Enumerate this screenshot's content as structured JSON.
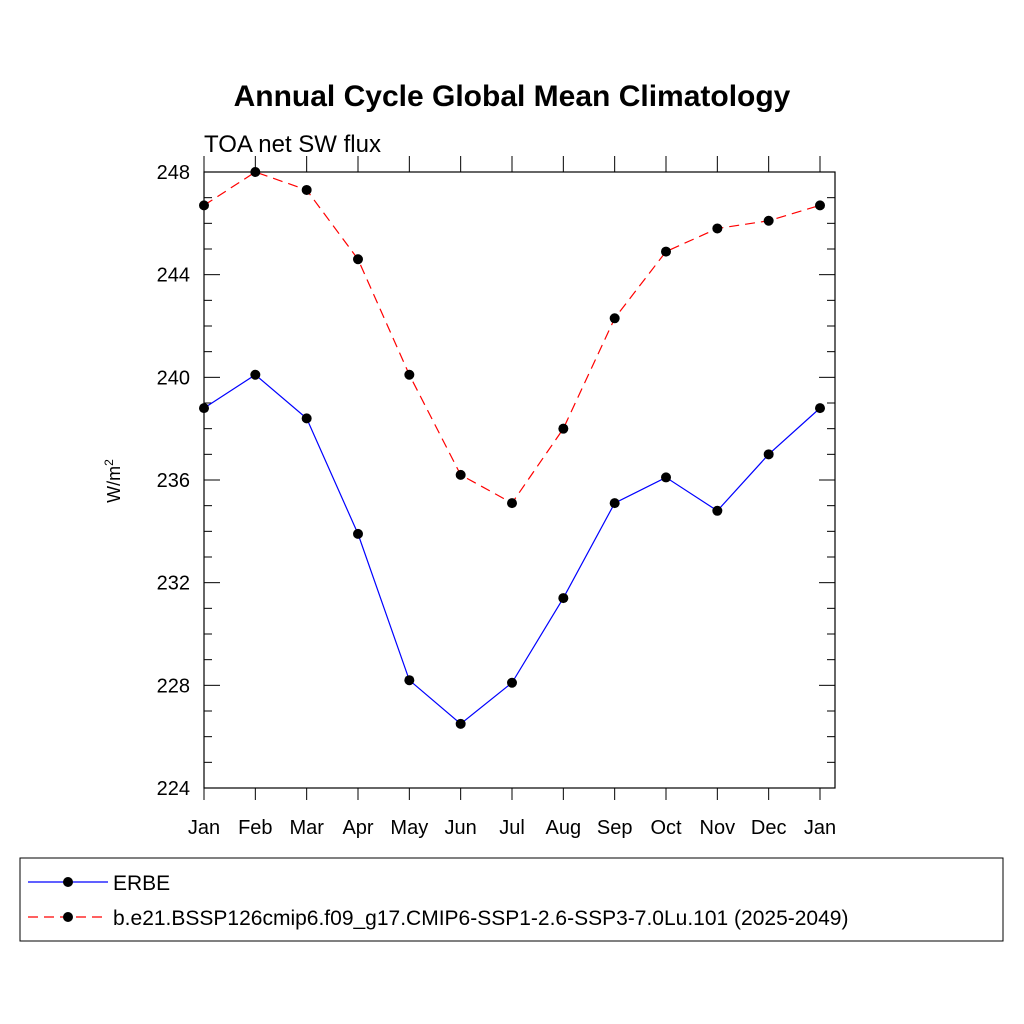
{
  "chart_data": {
    "type": "line",
    "title": "Annual Cycle Global Mean Climatology",
    "subtitle": "TOA net SW flux",
    "xlabel": "",
    "ylabel": "W/m",
    "ylabel_superscript": "2",
    "categories": [
      "Jan",
      "Feb",
      "Mar",
      "Apr",
      "May",
      "Jun",
      "Jul",
      "Aug",
      "Sep",
      "Oct",
      "Nov",
      "Dec",
      "Jan"
    ],
    "ylim": [
      224,
      248
    ],
    "yticks": [
      224,
      228,
      232,
      236,
      240,
      244,
      248
    ],
    "ytick_labels": [
      "224",
      "228",
      "232",
      "236",
      "240",
      "244",
      "248"
    ],
    "grid": false,
    "legend_position": "bottom",
    "series": [
      {
        "name": "ERBE",
        "color": "#0000ff",
        "line_style": "solid",
        "marker": "filled-circle",
        "values": [
          238.8,
          240.1,
          238.4,
          233.9,
          228.2,
          226.5,
          228.1,
          231.4,
          235.1,
          236.1,
          234.8,
          237.0,
          238.8
        ]
      },
      {
        "name": "b.e21.BSSP126cmip6.f09_g17.CMIP6-SSP1-2.6-SSP3-7.0Lu.101 (2025-2049)",
        "color": "#ff0000",
        "line_style": "dashed",
        "marker": "filled-circle",
        "values": [
          246.7,
          248.0,
          247.3,
          244.6,
          240.1,
          236.2,
          235.1,
          238.0,
          242.3,
          244.9,
          245.8,
          246.1,
          246.7
        ]
      }
    ]
  }
}
